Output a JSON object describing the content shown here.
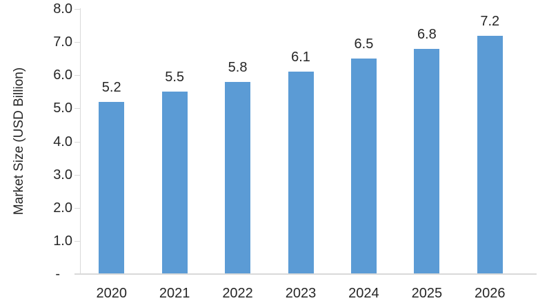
{
  "chart_data": {
    "type": "bar",
    "title": "",
    "categories": [
      "2020",
      "2021",
      "2022",
      "2023",
      "2024",
      "2025",
      "2026"
    ],
    "values": [
      5.2,
      5.5,
      5.8,
      6.1,
      6.5,
      6.8,
      7.2
    ],
    "data_labels": [
      "5.2",
      "5.5",
      "5.8",
      "6.1",
      "6.5",
      "6.8",
      "7.2"
    ],
    "xlabel": "",
    "ylabel": "Market Size (USD Billion)",
    "ylim": [
      0,
      8
    ],
    "ytick_step": 1,
    "ytick_labels_top_to_bottom": [
      "8.0",
      "7.0",
      "6.0",
      "5.0",
      "4.0",
      "3.0",
      "2.0",
      "1.0",
      "-"
    ],
    "grid": false,
    "legend": "none",
    "colors": {
      "bar": "#5B9BD5",
      "axis_line": "#D9D9D9",
      "text": "#262626",
      "background": "#FFFFFF"
    }
  }
}
